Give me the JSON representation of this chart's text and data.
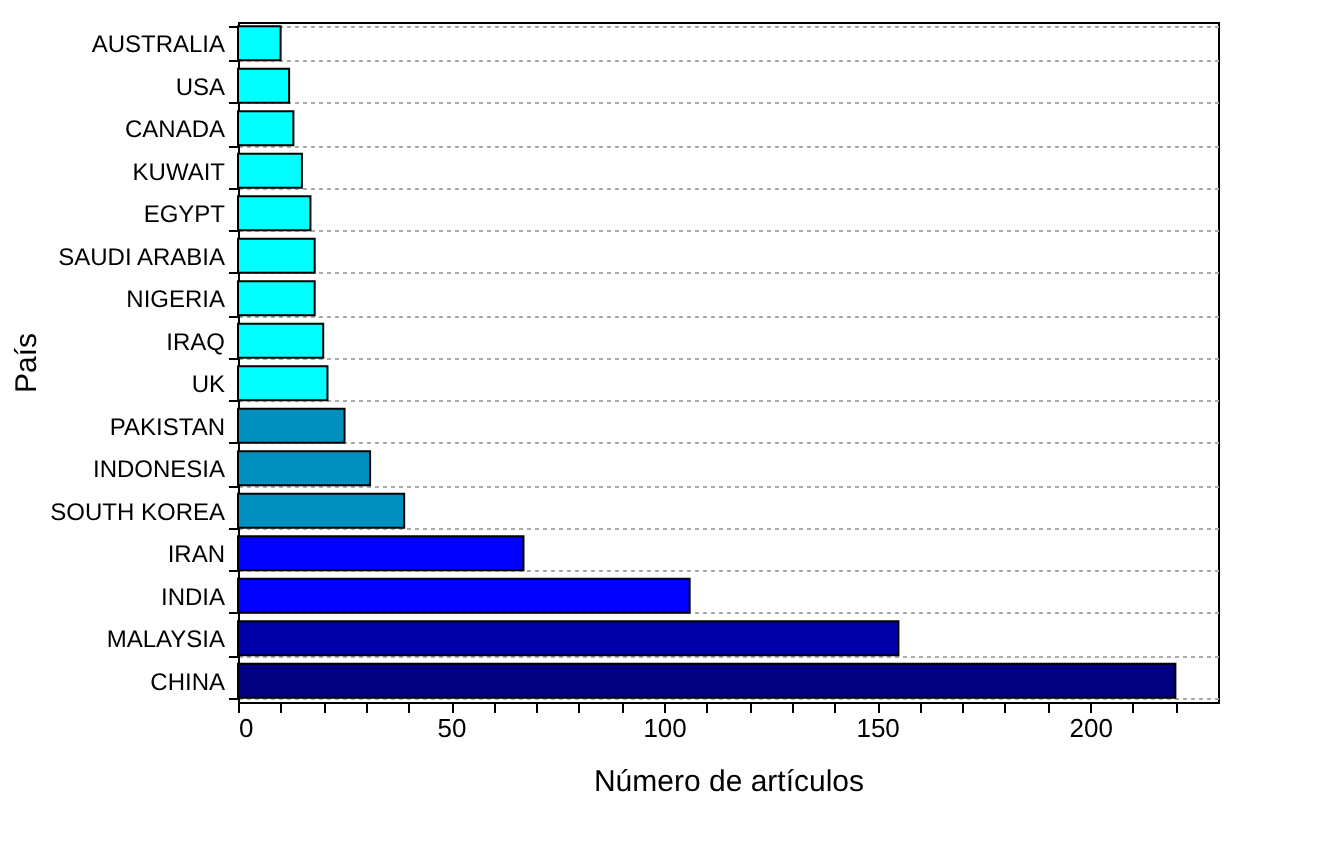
{
  "chart_data": {
    "type": "bar",
    "orientation": "horizontal",
    "xlabel": "Número de artículos",
    "ylabel": "País",
    "categories": [
      "AUSTRALIA",
      "USA",
      "CANADA",
      "KUWAIT",
      "EGYPT",
      "SAUDI ARABIA",
      "NIGERIA",
      "IRAQ",
      "UK",
      "PAKISTAN",
      "INDONESIA",
      "SOUTH KOREA",
      "IRAN",
      "INDIA",
      "MALAYSIA",
      "CHINA"
    ],
    "values": [
      10,
      12,
      13,
      15,
      17,
      18,
      18,
      20,
      21,
      25,
      31,
      39,
      67,
      106,
      155,
      220
    ],
    "colors": [
      "#00ffff",
      "#00ffff",
      "#00ffff",
      "#00ffff",
      "#00ffff",
      "#00ffff",
      "#00ffff",
      "#00ffff",
      "#00ffff",
      "#0090c0",
      "#0090c0",
      "#0090c0",
      "#0000ff",
      "#0000ff",
      "#0000a8",
      "#000080"
    ],
    "xlim": [
      0,
      230
    ],
    "xticks": [
      0,
      {
        "value": 10,
        "label": null
      },
      {
        "value": 20,
        "label": null
      },
      {
        "value": 30,
        "label": null
      },
      {
        "value": 40,
        "label": null
      },
      50,
      {
        "value": 60,
        "label": null
      },
      {
        "value": 70,
        "label": null
      },
      {
        "value": 80,
        "label": null
      },
      {
        "value": 90,
        "label": null
      },
      100,
      {
        "value": 110,
        "label": null
      },
      {
        "value": 120,
        "label": null
      },
      {
        "value": 130,
        "label": null
      },
      {
        "value": 140,
        "label": null
      },
      150,
      {
        "value": 160,
        "label": null
      },
      {
        "value": 170,
        "label": null
      },
      {
        "value": 180,
        "label": null
      },
      {
        "value": 190,
        "label": null
      },
      200,
      {
        "value": 210,
        "label": null
      },
      {
        "value": 220,
        "label": null
      }
    ],
    "grid": "y"
  }
}
